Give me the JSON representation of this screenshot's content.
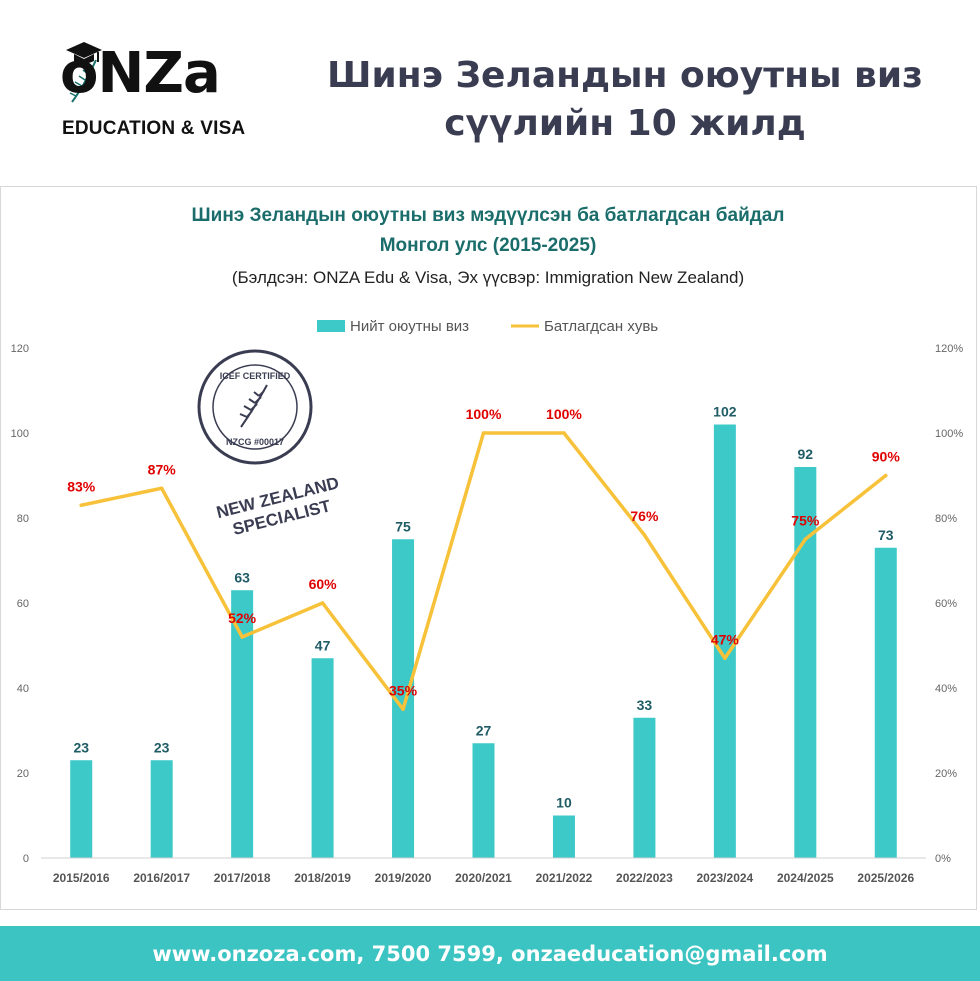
{
  "brand": {
    "logo_main": "oNZa",
    "logo_sub": "EDUCATION & VISA"
  },
  "header": {
    "title_line1": "Шинэ Зеландын оюутны виз",
    "title_line2": "сүүлийн 10 жилд"
  },
  "badge": {
    "ring_text": "ICEF CERTIFIED",
    "code": "NZCG #00017",
    "label_line1": "NEW ZEALAND",
    "label_line2": "SPECIALIST"
  },
  "colors": {
    "bar": "#3cc9c8",
    "line": "#f7c23a",
    "bar_label": "#1f5c66",
    "line_label": "#e00000",
    "title": "#1a6d6a",
    "footer_bg": "#3cc4c2"
  },
  "chart_data": {
    "type": "bar",
    "title": "Шинэ Зеландын оюутны виз мэдүүлсэн ба батлагдсан байдал",
    "subtitle": "Монгол улс (2015-2025)",
    "source": "(Бэлдсэн: ONZA Edu & Visa, Эх үүсвэр: Immigration New Zealand)",
    "categories": [
      "2015/2016",
      "2016/2017",
      "2017/2018",
      "2018/2019",
      "2019/2020",
      "2020/2021",
      "2021/2022",
      "2022/2023",
      "2023/2024",
      "2024/2025",
      "2025/2026"
    ],
    "series": [
      {
        "name": "Нийт оюутны виз",
        "type": "bar",
        "axis": "left",
        "values": [
          23,
          23,
          63,
          47,
          75,
          27,
          10,
          33,
          102,
          92,
          73
        ],
        "labels": [
          "23",
          "23",
          "63",
          "47",
          "75",
          "27",
          "10",
          "33",
          "102",
          "92",
          "73"
        ]
      },
      {
        "name": "Батлагдсан хувь",
        "type": "line",
        "axis": "right",
        "values": [
          83,
          87,
          52,
          60,
          35,
          100,
          100,
          76,
          47,
          75,
          90
        ],
        "labels": [
          "83%",
          "87%",
          "52%",
          "60%",
          "35%",
          "100%",
          "100%",
          "76%",
          "47%",
          "75%",
          "90%"
        ]
      }
    ],
    "y_left": {
      "min": 0,
      "max": 120,
      "ticks": [
        "0",
        "20",
        "40",
        "60",
        "80",
        "100",
        "120"
      ]
    },
    "y_right": {
      "min": 0,
      "max": 120,
      "ticks": [
        "0%",
        "20%",
        "40%",
        "60%",
        "80%",
        "100%",
        "120%"
      ]
    },
    "grid": false,
    "legend_position": "top"
  },
  "footer": {
    "contact": "www.onzoza.com, 7500 7599, onzaeducation@gmail.com"
  }
}
